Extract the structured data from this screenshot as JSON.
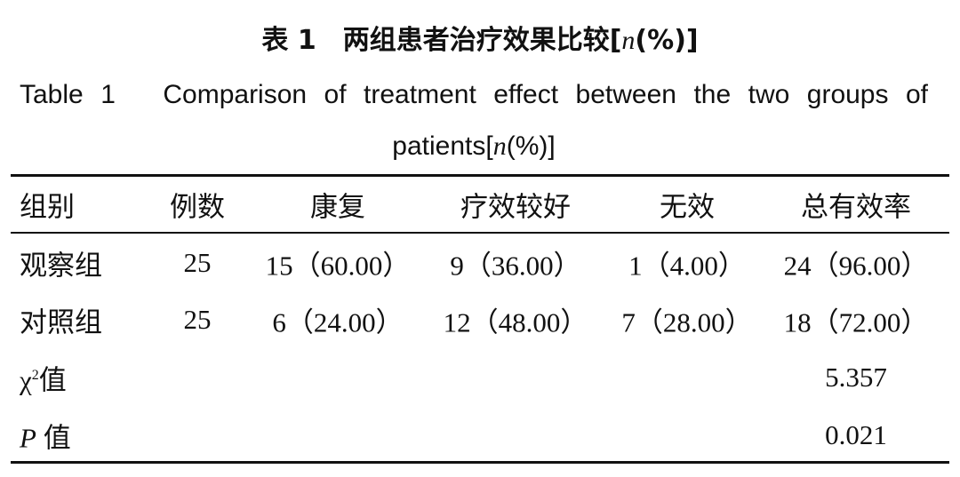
{
  "title": {
    "cn_label": "表 1",
    "cn_text": "两组患者治疗效果比较[",
    "cn_var": "n",
    "cn_end": "(%)]",
    "en_label": "Table 1",
    "en_text": "Comparison of treatment effect between the two groups of patients[",
    "en_var": "n",
    "en_end": "(%)]"
  },
  "table": {
    "header": [
      "组别",
      "例数",
      "康复",
      "疗效较好",
      "无效",
      "总有效率"
    ],
    "rows": [
      [
        "观察组",
        "25",
        "15（60.00）",
        "9（36.00）",
        "1（4.00）",
        "24（96.00）"
      ],
      [
        "对照组",
        "25",
        "6（24.00）",
        "12（48.00）",
        "7（28.00）",
        "18（72.00）"
      ]
    ],
    "chi": {
      "symbol": "χ",
      "sup": "2",
      "label": "值",
      "value": "5.357"
    },
    "p": {
      "symbol": "P",
      "label": "值",
      "value": "0.021"
    }
  }
}
